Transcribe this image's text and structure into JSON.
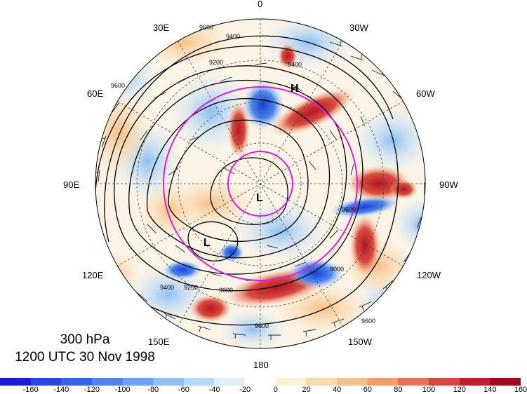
{
  "map": {
    "level": "300 hPa",
    "datetime": "1200 UTC 30 Nov 1998",
    "longitude_labels": {
      "top": "0",
      "bottom": "180",
      "left": "90E",
      "right": "90W",
      "upper_left_1": "30E",
      "upper_left_2": "60E",
      "upper_right_1": "30W",
      "upper_right_2": "60W",
      "lower_left_1": "120E",
      "lower_left_2": "150E",
      "lower_right_1": "120W",
      "lower_right_2": "150W"
    },
    "pressure_centers": [
      {
        "label": "H"
      },
      {
        "label": "L"
      },
      {
        "label": "L"
      }
    ],
    "contour_labels": [
      "9600",
      "9400",
      "9200",
      "9000",
      "9600",
      "9000",
      "9600",
      "9200",
      "9400",
      "9600",
      "9400",
      "9600"
    ],
    "projection": "north polar stereographic",
    "shading_colors": {
      "positive": "#b51624",
      "negative": "#1a3fd6",
      "neutral": "#ffffff"
    }
  },
  "colorbar": {
    "colors": [
      "#1c1cd4",
      "#2448e0",
      "#3366e6",
      "#4d86ec",
      "#6aa3f0",
      "#8cbff4",
      "#b4d8f8",
      "#dceffb",
      "#ffffff",
      "#fdf1d3",
      "#fbdcae",
      "#f6c088",
      "#efa06a",
      "#e47452",
      "#d44840",
      "#c01e2e",
      "#9e0a1c"
    ],
    "tick_labels": [
      "-160",
      "-140",
      "-120",
      "-100",
      "-80",
      "-60",
      "-40",
      "-20",
      "0",
      "20",
      "40",
      "60",
      "80",
      "100",
      "120",
      "140",
      "160"
    ]
  }
}
